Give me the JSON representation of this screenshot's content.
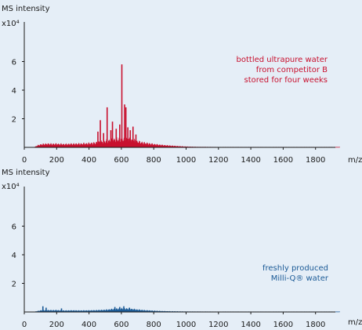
{
  "colors": {
    "background": "#e5eef7",
    "axis": "#1a1a1a",
    "top_series": "#c8102e",
    "bottom_series": "#1b5a96"
  },
  "chart_data": [
    {
      "type": "area",
      "ylabel": "MS intensity",
      "yunit": "x10⁴",
      "xunit": "m/z",
      "xlim": [
        0,
        2000
      ],
      "ylim": [
        0,
        8
      ],
      "grid": false,
      "x_ticks": [
        "0",
        "200",
        "400",
        "600",
        "800",
        "1000",
        "1200",
        "1400",
        "1600",
        "1800"
      ],
      "y_ticks": [
        "2",
        "4",
        "6"
      ],
      "annotation": [
        "bottled ultrapure water",
        "from competitor B",
        "stored for four weeks"
      ],
      "series": [
        {
          "color": "#c8102e",
          "envelope": [
            [
              60,
              0
            ],
            [
              80,
              0.15
            ],
            [
              100,
              0.25
            ],
            [
              130,
              0.3
            ],
            [
              160,
              0.3
            ],
            [
              200,
              0.3
            ],
            [
              250,
              0.28
            ],
            [
              300,
              0.3
            ],
            [
              350,
              0.32
            ],
            [
              400,
              0.35
            ],
            [
              440,
              0.4
            ],
            [
              480,
              0.5
            ],
            [
              520,
              0.6
            ],
            [
              560,
              0.7
            ],
            [
              600,
              0.75
            ],
            [
              640,
              0.72
            ],
            [
              680,
              0.6
            ],
            [
              720,
              0.45
            ],
            [
              760,
              0.35
            ],
            [
              800,
              0.28
            ],
            [
              850,
              0.2
            ],
            [
              900,
              0.15
            ],
            [
              950,
              0.1
            ],
            [
              1000,
              0.06
            ],
            [
              1050,
              0.04
            ],
            [
              1100,
              0.03
            ],
            [
              1200,
              0.02
            ],
            [
              1400,
              0.02
            ],
            [
              1600,
              0.02
            ],
            [
              1800,
              0.02
            ],
            [
              1950,
              0.02
            ]
          ],
          "peaks": [
            [
              455,
              1.1
            ],
            [
              470,
              1.9
            ],
            [
              490,
              1.0
            ],
            [
              512,
              2.8
            ],
            [
              535,
              1.2
            ],
            [
              545,
              1.8
            ],
            [
              568,
              1.3
            ],
            [
              590,
              1.6
            ],
            [
              603,
              5.8
            ],
            [
              620,
              3.0
            ],
            [
              628,
              2.8
            ],
            [
              640,
              1.4
            ],
            [
              655,
              1.2
            ],
            [
              672,
              1.45
            ],
            [
              690,
              0.9
            ]
          ]
        }
      ]
    },
    {
      "type": "area",
      "ylabel": "MS intensity",
      "yunit": "x10⁴",
      "xunit": "m/z",
      "xlim": [
        0,
        2000
      ],
      "ylim": [
        0,
        8
      ],
      "grid": false,
      "x_ticks": [
        "0",
        "200",
        "400",
        "600",
        "800",
        "1000",
        "1200",
        "1400",
        "1600",
        "1800"
      ],
      "y_ticks": [
        "2",
        "4",
        "6"
      ],
      "annotation": [
        "freshly produced",
        "Milli-Q® water"
      ],
      "series": [
        {
          "color": "#1b5a96",
          "envelope": [
            [
              60,
              0
            ],
            [
              90,
              0.1
            ],
            [
              110,
              0.15
            ],
            [
              150,
              0.15
            ],
            [
              200,
              0.15
            ],
            [
              250,
              0.12
            ],
            [
              300,
              0.13
            ],
            [
              350,
              0.12
            ],
            [
              400,
              0.13
            ],
            [
              450,
              0.15
            ],
            [
              500,
              0.18
            ],
            [
              550,
              0.25
            ],
            [
              600,
              0.3
            ],
            [
              650,
              0.28
            ],
            [
              700,
              0.2
            ],
            [
              750,
              0.14
            ],
            [
              800,
              0.1
            ],
            [
              850,
              0.07
            ],
            [
              900,
              0.05
            ],
            [
              1000,
              0.03
            ],
            [
              1200,
              0.02
            ],
            [
              1400,
              0.02
            ],
            [
              1600,
              0.02
            ],
            [
              1800,
              0.02
            ],
            [
              1950,
              0.02
            ]
          ],
          "peaks": [
            [
              115,
              0.4
            ],
            [
              135,
              0.3
            ],
            [
              230,
              0.25
            ],
            [
              560,
              0.35
            ],
            [
              590,
              0.35
            ],
            [
              615,
              0.4
            ],
            [
              650,
              0.3
            ]
          ]
        }
      ]
    }
  ]
}
